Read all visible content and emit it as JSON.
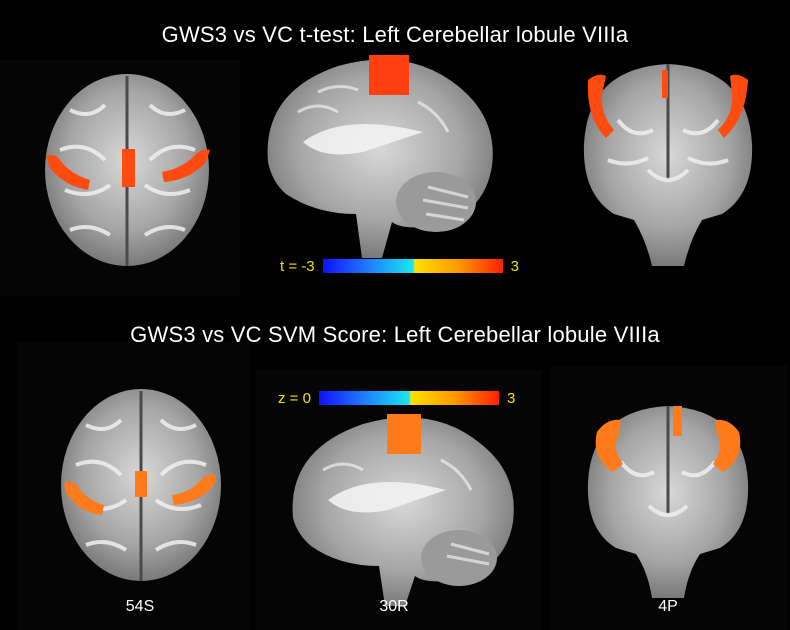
{
  "titles": {
    "top": "GWS3 vs VC t-test: Left Cerebellar lobule VIIIa",
    "bottom": "GWS3 vs VC SVM Score: Left Cerebellar lobule VIIIa"
  },
  "colorbars": {
    "ttest": {
      "min_label": "t = -3",
      "max_label": "3"
    },
    "svm": {
      "min_label": "z = 0",
      "max_label": "3"
    }
  },
  "slice_labels": {
    "axial": "54S",
    "sagittal": "30R",
    "coronal": "4P"
  },
  "colors": {
    "overlay_top": "#ff4a10",
    "overlay_bottom": "#ff7a1a",
    "label": "#f5e000"
  }
}
